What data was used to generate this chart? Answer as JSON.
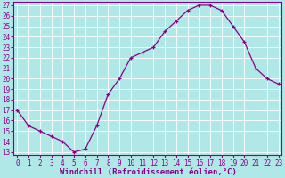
{
  "x": [
    0,
    1,
    2,
    3,
    4,
    5,
    6,
    7,
    8,
    9,
    10,
    11,
    12,
    13,
    14,
    15,
    16,
    17,
    18,
    19,
    20,
    21,
    22,
    23
  ],
  "y": [
    17,
    15.5,
    15,
    14.5,
    14,
    13,
    13.3,
    15.5,
    18.5,
    20,
    22,
    22.5,
    23,
    24.5,
    25.5,
    26.5,
    27,
    27,
    26.5,
    25,
    23.5,
    21,
    20,
    19.5
  ],
  "xlim": [
    -0.3,
    23.3
  ],
  "ymin": 13,
  "ymax": 27,
  "yticks": [
    13,
    14,
    15,
    16,
    17,
    18,
    19,
    20,
    21,
    22,
    23,
    24,
    25,
    26,
    27
  ],
  "xticks": [
    0,
    1,
    2,
    3,
    4,
    5,
    6,
    7,
    8,
    9,
    10,
    11,
    12,
    13,
    14,
    15,
    16,
    17,
    18,
    19,
    20,
    21,
    22,
    23
  ],
  "xlabel": "Windchill (Refroidissement éolien,°C)",
  "line_color": "#880088",
  "marker": "+",
  "bg_color": "#b0e8e8",
  "grid_color": "#ffffff",
  "tick_label_fontsize": 5.5,
  "xlabel_fontsize": 6.5,
  "spine_color": "#880088"
}
